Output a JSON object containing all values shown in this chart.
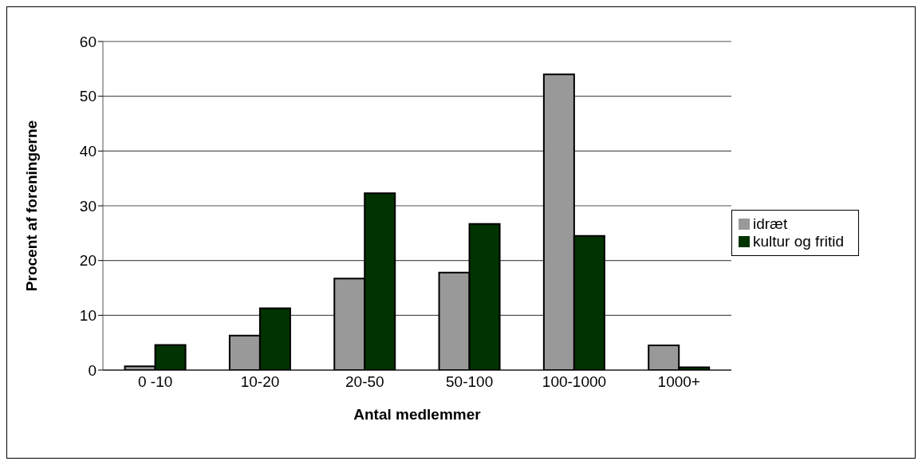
{
  "chart_data": {
    "type": "bar",
    "xlabel": "Antal medlemmer",
    "ylabel": "Procent af foreningerne",
    "categories": [
      "0 -10",
      "10-20",
      "20-50",
      "50-100",
      "100-1000",
      "1000+"
    ],
    "series": [
      {
        "name": "idræt",
        "color": "#999999",
        "values": [
          0.7,
          6.3,
          16.7,
          17.8,
          54.0,
          4.5
        ]
      },
      {
        "name": "kultur og fritid",
        "color": "#003300",
        "values": [
          4.6,
          11.3,
          32.3,
          26.7,
          24.5,
          0.5
        ]
      }
    ],
    "ylim": [
      0,
      60
    ],
    "yticks": [
      0,
      10,
      20,
      30,
      40,
      50,
      60
    ],
    "grid": "y",
    "legend": "right"
  }
}
